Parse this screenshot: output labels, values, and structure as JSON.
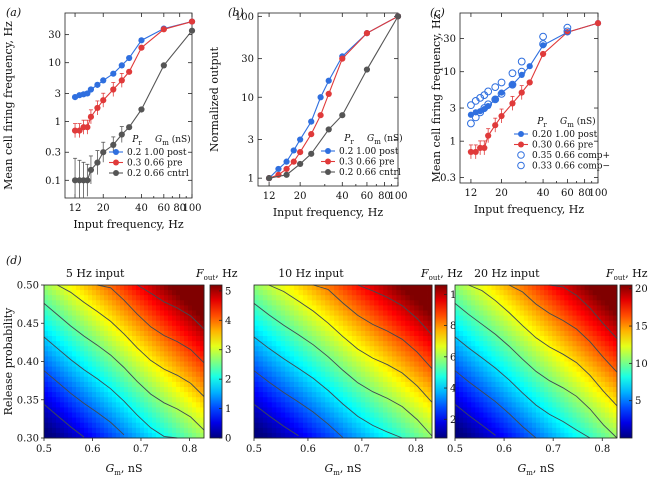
{
  "chart_data": [
    {
      "panel": "(a)",
      "type": "line",
      "xscale": "log",
      "yscale": "log",
      "xlim": [
        10,
        100
      ],
      "ylim": [
        0.05,
        70
      ],
      "xticks": [
        "12",
        "20",
        "40",
        "60",
        "80",
        "100"
      ],
      "xtick_values": [
        12,
        20,
        40,
        60,
        80,
        100
      ],
      "yticks": [
        "0.1",
        "0.3",
        "1",
        "3",
        "10",
        "30"
      ],
      "ytick_values": [
        0.1,
        0.3,
        1,
        3,
        10,
        30
      ],
      "xlabel": "Input frequency, Hz",
      "ylabel": "Mean cell firing frequency, Hz",
      "legend_header": {
        "pr": "P",
        "pr_sub": "r",
        "gm": "G",
        "gm_sub": "m",
        "gm_unit": " (nS)"
      },
      "series": [
        {
          "name": "0.2  1.00  post",
          "color": "#2f6fdf",
          "marker": "filled",
          "x": [
            12,
            13,
            14,
            15,
            16,
            18,
            20,
            24,
            28,
            32,
            40,
            60,
            100
          ],
          "y": [
            2.6,
            2.8,
            2.9,
            3.0,
            3.5,
            4.2,
            5.0,
            6.5,
            9.0,
            12,
            24,
            38,
            50
          ]
        },
        {
          "name": "0.3  0.66  pre",
          "color": "#e03a3a",
          "marker": "filled",
          "x": [
            12,
            13,
            14,
            15,
            16,
            18,
            20,
            24,
            28,
            32,
            40,
            60,
            100
          ],
          "y": [
            0.7,
            0.7,
            0.8,
            0.8,
            1.2,
            1.7,
            2.3,
            3.5,
            5.0,
            7.0,
            18,
            37,
            50
          ]
        },
        {
          "name": "0.2  0.66  cntrl",
          "color": "#555555",
          "marker": "filled",
          "x": [
            12,
            13,
            14,
            15,
            16,
            18,
            20,
            24,
            28,
            32,
            40,
            60,
            100
          ],
          "y": [
            0.1,
            0.1,
            0.1,
            0.1,
            0.15,
            0.2,
            0.3,
            0.4,
            0.6,
            0.8,
            1.6,
            9.0,
            35
          ]
        }
      ]
    },
    {
      "panel": "(b)",
      "type": "line",
      "xscale": "log",
      "yscale": "log",
      "xlim": [
        10,
        100
      ],
      "ylim": [
        0.8,
        110
      ],
      "xticks": [
        "12",
        "20",
        "40",
        "60",
        "80",
        "100"
      ],
      "xtick_values": [
        12,
        20,
        40,
        60,
        80,
        100
      ],
      "yticks": [
        "1",
        "3",
        "10",
        "30",
        "100"
      ],
      "ytick_values": [
        1,
        3,
        10,
        30,
        100
      ],
      "xlabel": "Input frequency, Hz",
      "ylabel": "Normalized output",
      "legend_header": {
        "pr": "P",
        "pr_sub": "r",
        "gm": "G",
        "gm_sub": "m",
        "gm_unit": " (nS)"
      },
      "series": [
        {
          "name": "0.2  1.00  post",
          "color": "#2f6fdf",
          "marker": "filled",
          "x": [
            12,
            14,
            16,
            18,
            20,
            24,
            28,
            32,
            40,
            60,
            100
          ],
          "y": [
            1.0,
            1.3,
            1.6,
            2.2,
            3.0,
            5.0,
            10,
            16,
            32,
            62,
            100
          ]
        },
        {
          "name": "0.3  0.66  pre",
          "color": "#e03a3a",
          "marker": "filled",
          "x": [
            12,
            14,
            16,
            18,
            20,
            24,
            28,
            32,
            40,
            60,
            100
          ],
          "y": [
            1.0,
            1.1,
            1.3,
            1.6,
            2.1,
            3.5,
            6.0,
            11,
            30,
            62,
            100
          ]
        },
        {
          "name": "0.2  0.66  cntrl",
          "color": "#555555",
          "marker": "filled",
          "x": [
            12,
            16,
            20,
            24,
            32,
            40,
            60,
            100
          ],
          "y": [
            1.0,
            1.1,
            1.5,
            2.0,
            4.0,
            6.0,
            22,
            100
          ]
        }
      ]
    },
    {
      "panel": "(c)",
      "type": "line",
      "xscale": "log",
      "yscale": "log",
      "xlim": [
        10,
        100
      ],
      "ylim": [
        0.25,
        70
      ],
      "xticks": [
        "12",
        "20",
        "40",
        "60",
        "80",
        "100"
      ],
      "xtick_values": [
        12,
        20,
        40,
        60,
        80,
        100
      ],
      "yticks": [
        "0.3",
        "1",
        "3",
        "10",
        "30"
      ],
      "ytick_values": [
        0.3,
        1,
        3,
        10,
        30
      ],
      "xlabel": "Input frequency, Hz",
      "ylabel": "Mean cell firing frequency, Hz",
      "legend_header": {
        "pr": "P",
        "pr_sub": "r",
        "gm": "G",
        "gm_sub": "m",
        "gm_unit": " (nS)"
      },
      "series": [
        {
          "name": "0.20  1.00  post",
          "color": "#2f6fdf",
          "marker": "filled",
          "x": [
            12,
            13,
            14,
            15,
            16,
            18,
            20,
            24,
            28,
            32,
            40,
            60,
            100
          ],
          "y": [
            2.4,
            2.6,
            2.7,
            2.9,
            3.2,
            4.0,
            5.0,
            6.5,
            9.0,
            12,
            24,
            37,
            50
          ]
        },
        {
          "name": "0.30  0.66  pre",
          "color": "#e03a3a",
          "marker": "filled",
          "x": [
            12,
            13,
            14,
            15,
            16,
            18,
            20,
            24,
            28,
            32,
            40,
            60,
            100
          ],
          "y": [
            0.7,
            0.7,
            0.8,
            0.8,
            1.2,
            1.7,
            2.3,
            3.5,
            5.0,
            7.0,
            18,
            37,
            50
          ]
        },
        {
          "name": "0.35  0.66  comp+",
          "color": "#2f6fdf",
          "marker": "open",
          "x": [
            12,
            13,
            14,
            15,
            16,
            18,
            20,
            24,
            28,
            40,
            60
          ],
          "y": [
            3.3,
            3.8,
            4.2,
            4.6,
            5.2,
            6.0,
            7.0,
            9.5,
            14,
            32,
            43
          ]
        },
        {
          "name": "0.33  0.66  comp−",
          "color": "#2f6fdf",
          "marker": "open",
          "x": [
            12,
            13,
            14,
            15,
            16,
            18,
            20,
            24,
            28,
            40,
            60
          ],
          "y": [
            1.8,
            2.2,
            2.6,
            3.0,
            3.4,
            4.0,
            4.8,
            6.5,
            10,
            25,
            38
          ]
        }
      ]
    },
    {
      "panel": "(d)",
      "type": "heatmap",
      "xlim": [
        0.5,
        0.83
      ],
      "ylim": [
        0.3,
        0.5
      ],
      "xticks": [
        "0.5",
        "0.6",
        "0.7",
        "0.8"
      ],
      "xtick_values": [
        0.5,
        0.6,
        0.7,
        0.8
      ],
      "yticks": [
        "0.30",
        "0.35",
        "0.40",
        "0.45",
        "0.50"
      ],
      "ytick_values": [
        0.3,
        0.35,
        0.4,
        0.45,
        0.5
      ],
      "xlabel": "G",
      "xlabel_sub": "m",
      "xlabel_unit": ", nS",
      "ylabel": "Release probability",
      "colorbar_label": "F",
      "colorbar_sub": "out",
      "colorbar_unit": ", Hz",
      "maps": [
        {
          "title": "5 Hz input",
          "vmin": 0,
          "vmax": 5.2,
          "cbar_ticks": [
            "0",
            "1",
            "2",
            "3",
            "4",
            "5"
          ],
          "cbar_values": [
            0,
            1,
            2,
            3,
            4,
            5
          ]
        },
        {
          "title": "10 Hz input",
          "vmin": 0.8,
          "vmax": 10.6,
          "cbar_ticks": [
            "2",
            "4",
            "6",
            "8",
            "10"
          ],
          "cbar_values": [
            2,
            4,
            6,
            8,
            10
          ]
        },
        {
          "title": "20 Hz input",
          "vmin": 0,
          "vmax": 20.5,
          "cbar_ticks": [
            "5",
            "10",
            "15",
            "20"
          ],
          "cbar_values": [
            5,
            10,
            15,
            20
          ]
        }
      ]
    }
  ]
}
